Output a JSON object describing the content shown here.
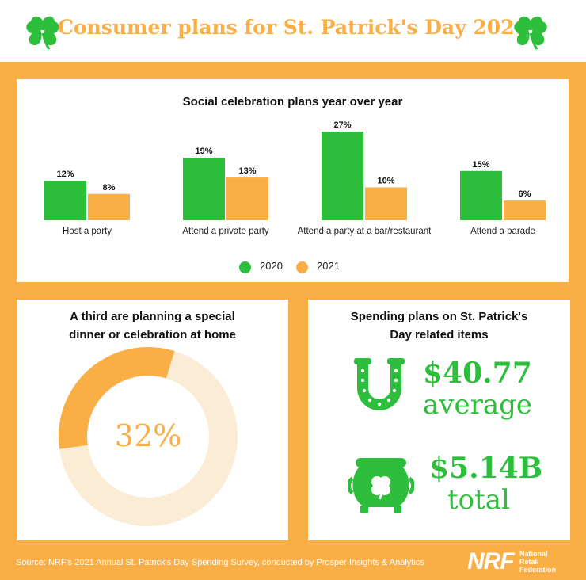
{
  "header": {
    "title": "Consumer plans for St. Patrick's Day 2021"
  },
  "chart_data": {
    "type": "bar",
    "title": "Social celebration plans year over year",
    "categories": [
      "Host a party",
      "Attend a private party",
      "Attend a party at a bar/restaurant",
      "Attend a parade"
    ],
    "series": [
      {
        "name": "2020",
        "values": [
          12,
          19,
          27,
          15
        ],
        "labels": [
          "12%",
          "19%",
          "27%",
          "15%"
        ],
        "color": "#2dbe3b"
      },
      {
        "name": "2021",
        "values": [
          8,
          13,
          10,
          6
        ],
        "labels": [
          "8%",
          "13%",
          "10%",
          "6%"
        ],
        "color": "#f9ae46"
      }
    ],
    "unit": "%",
    "legend": "bottom-center",
    "grid": false
  },
  "donut": {
    "title_line1": "A third are planning a special",
    "title_line2": "dinner or celebration at home",
    "value": 32,
    "label": "32%",
    "fill_color": "#f9ae46",
    "track_color": "#fbecd6"
  },
  "spending": {
    "title_line1": "Spending plans on St. Patrick's",
    "title_line2": "Day related items",
    "average_amount": "$40.77",
    "average_label": "average",
    "total_amount": "$5.14B",
    "total_label": "total",
    "icons": [
      "horseshoe-icon",
      "pot-of-gold-icon"
    ]
  },
  "footer": {
    "source": "Source: NRF's 2021 Annual St. Patrick's Day Spending Survey, conducted by Prosper Insights & Analytics",
    "logo_text": "NRF",
    "logo_name_1": "National",
    "logo_name_2": "Retail",
    "logo_name_3": "Federation"
  },
  "colors": {
    "green": "#2dbe3b",
    "orange": "#f9ae46"
  }
}
